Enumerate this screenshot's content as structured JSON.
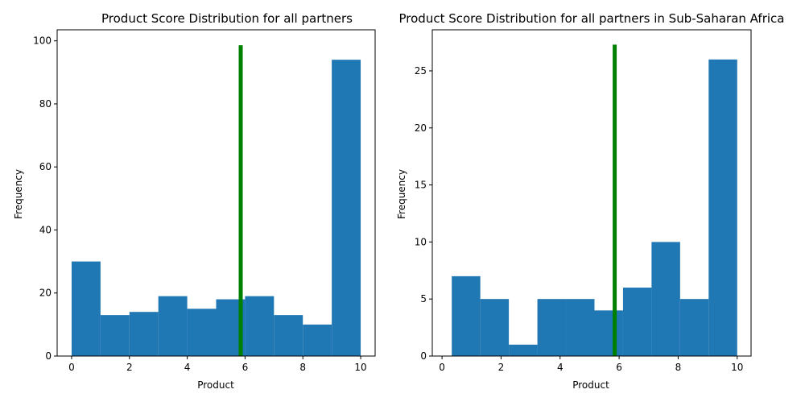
{
  "chart_data": [
    {
      "type": "bar",
      "title": "Product Score Distribution for all partners",
      "xlabel": "Product",
      "ylabel": "Frequency",
      "xlim": [
        -0.5,
        10.5
      ],
      "ylim": [
        0,
        103.5
      ],
      "xticks": [
        0,
        2,
        4,
        6,
        8,
        10
      ],
      "yticks": [
        0,
        20,
        40,
        60,
        80,
        100
      ],
      "bin_edges": [
        0,
        1,
        2,
        3,
        4,
        5,
        6,
        7,
        8,
        9,
        10
      ],
      "values": [
        30,
        13,
        14,
        19,
        15,
        18,
        19,
        13,
        10,
        94
      ],
      "marker_line": {
        "x": 5.85,
        "height": 98.6
      },
      "bar_color": "#1f77b4",
      "marker_color": "#008000",
      "grid": false
    },
    {
      "type": "bar",
      "title": "Product Score Distribution for all partners in Sub-Saharan Africa",
      "xlabel": "Product",
      "ylabel": "Frequency",
      "xlim": [
        -0.33,
        10.47
      ],
      "ylim": [
        0,
        28.6
      ],
      "xticks": [
        0,
        2,
        4,
        6,
        8,
        10
      ],
      "yticks": [
        0,
        5,
        10,
        15,
        20,
        25
      ],
      "bin_edges": [
        0.33,
        1.297,
        2.264,
        3.231,
        4.198,
        5.165,
        6.132,
        7.099,
        8.066,
        9.033,
        10.0
      ],
      "values": [
        7,
        5,
        1,
        5,
        5,
        4,
        6,
        10,
        5,
        26
      ],
      "marker_line": {
        "x": 5.85,
        "height": 27.3
      },
      "bar_color": "#1f77b4",
      "marker_color": "#008000",
      "grid": false
    }
  ]
}
